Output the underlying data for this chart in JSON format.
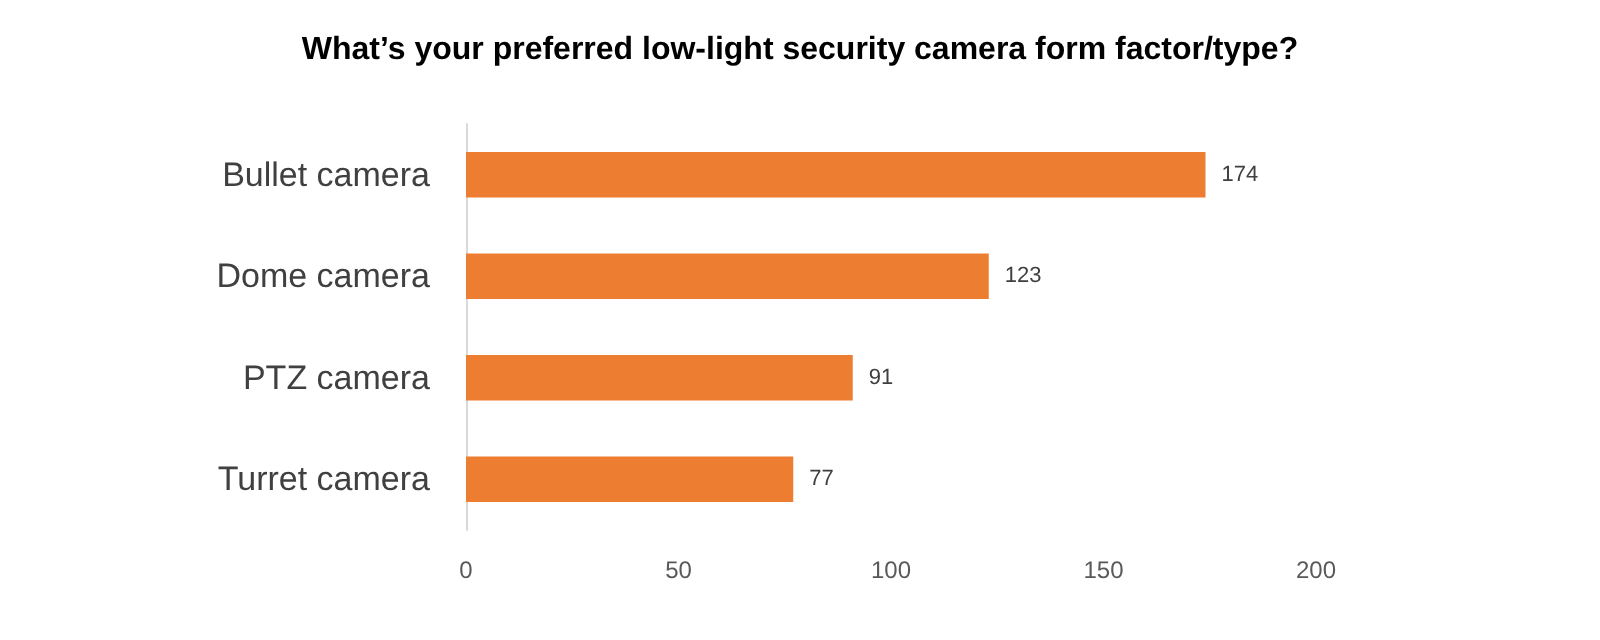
{
  "chart_data": {
    "type": "bar",
    "orientation": "horizontal",
    "title": "What’s your preferred low-light security camera form factor/type?",
    "categories": [
      "Bullet camera",
      "Dome camera",
      "PTZ camera",
      "Turret camera"
    ],
    "values": [
      174,
      123,
      91,
      77
    ],
    "color": "#ed7d31",
    "xlim": [
      0,
      200
    ],
    "xticks": [
      0,
      50,
      100,
      150,
      200
    ],
    "grid": false,
    "data_labels": true
  }
}
